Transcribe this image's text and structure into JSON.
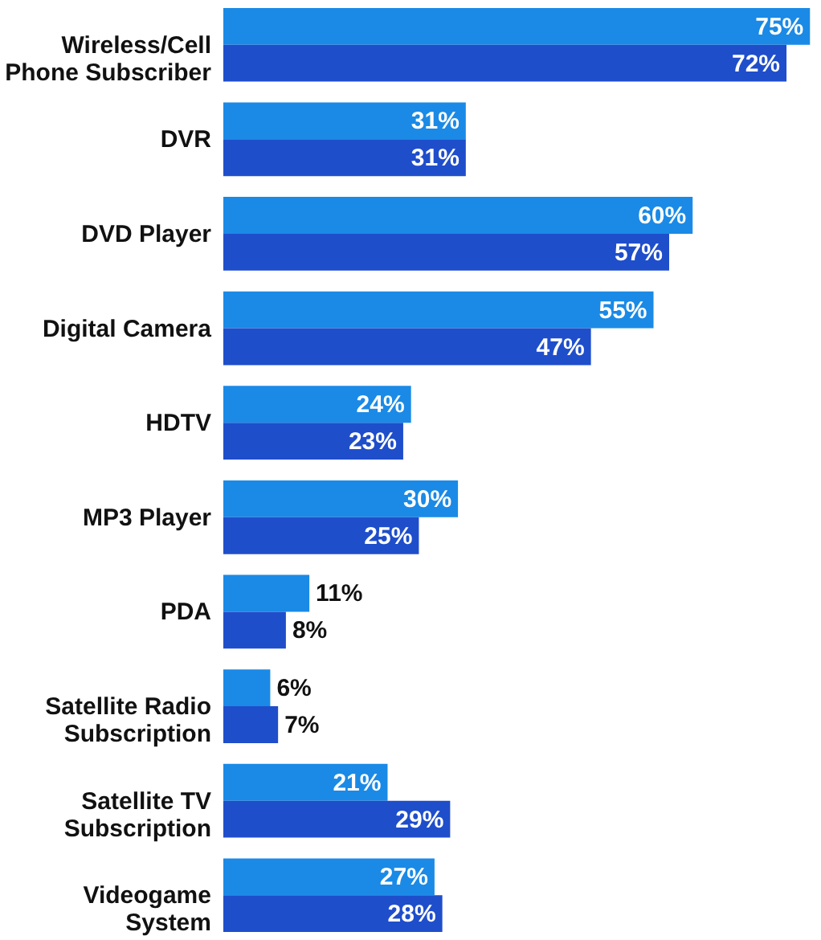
{
  "chart_data": {
    "type": "bar",
    "orientation": "horizontal",
    "categories": [
      "Wireless/Cell\nPhone Subscriber",
      "DVR",
      "DVD Player",
      "Digital Camera",
      "HDTV",
      "MP3 Player",
      "PDA",
      "Satellite Radio\nSubscription",
      "Satellite TV\nSubscription",
      "Videogame\nSystem"
    ],
    "series": [
      {
        "color": "#1a8ae6",
        "values": [
          75,
          31,
          60,
          55,
          24,
          30,
          11,
          6,
          21,
          27
        ],
        "value_labels": [
          "75%",
          "31%",
          "60%",
          "55%",
          "24%",
          "30%",
          "11%",
          "6%",
          "21%",
          "27%"
        ]
      },
      {
        "color": "#1f4ecb",
        "values": [
          72,
          31,
          57,
          47,
          23,
          25,
          8,
          7,
          29,
          28
        ],
        "value_labels": [
          "72%",
          "31%",
          "57%",
          "47%",
          "23%",
          "25%",
          "8%",
          "7%",
          "29%",
          "28%"
        ]
      }
    ],
    "xlim": [
      0,
      76
    ]
  }
}
